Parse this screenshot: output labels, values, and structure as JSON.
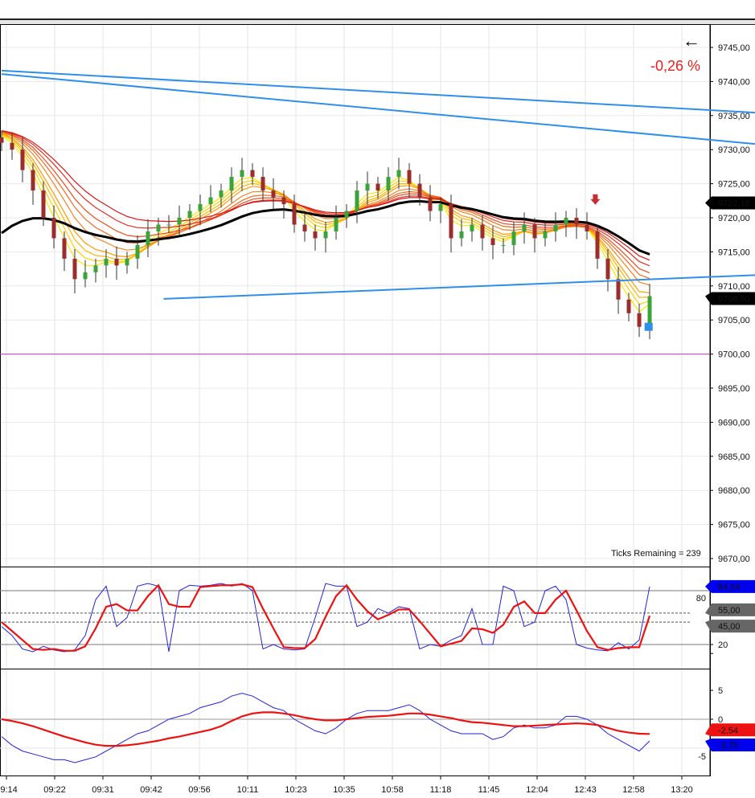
{
  "header": {
    "change_percent": "-0,26 %",
    "back_icon": "arrow-left-icon",
    "ticks_remaining": "Ticks Remaining = 239"
  },
  "colors": {
    "up": "#3aa43a",
    "down": "#9b2d2d",
    "trend": "#2f8fe8",
    "ma_long": "#000000",
    "support": "#cc33cc",
    "stoch_k": "#2222dd",
    "stoch_d": "#ee1111"
  },
  "chart_data": [
    {
      "type": "candlestick",
      "title": "Price",
      "ylim": [
        9667,
        9748
      ],
      "yticks": [
        "9745,00",
        "9740,00",
        "9735,00",
        "9730,00",
        "9725,00",
        "9720,00",
        "9715,00",
        "9710,00",
        "9705,00",
        "9700,00",
        "9695,00",
        "9690,00",
        "9685,00",
        "9680,00",
        "9675,00",
        "9670,00"
      ],
      "xticks": [
        "09:14",
        "09:22",
        "09:31",
        "09:42",
        "09:56",
        "10:11",
        "10:23",
        "10:35",
        "10:58",
        "11:18",
        "11:45",
        "12:04",
        "12:43",
        "12:58",
        "13:20"
      ],
      "close": [
        9731,
        9730,
        9727,
        9724,
        9720,
        9717,
        9714,
        9711,
        9712,
        9713,
        9714,
        9713,
        9714,
        9716,
        9718,
        9719,
        9719,
        9720,
        9721,
        9722,
        9723,
        9724,
        9726,
        9727,
        9726,
        9724,
        9723,
        9722,
        9719,
        9718,
        9717,
        9718,
        9720,
        9721,
        9724,
        9725,
        9724,
        9726,
        9727,
        9725,
        9723,
        9721,
        9722,
        9717,
        9718,
        9719,
        9717,
        9716,
        9716,
        9718,
        9719,
        9717,
        9718,
        9719,
        9720,
        9719,
        9718,
        9714,
        9711,
        9708,
        9706,
        9704,
        9708.5
      ],
      "trendlines": [
        {
          "from": [
            0,
            9741.6
          ],
          "to": [
            135.5,
            9730
          ]
        },
        {
          "from": [
            0,
            9741.1
          ],
          "to": [
            135.5,
            9721.8
          ]
        },
        {
          "from": [
            78.3,
            9729.8
          ],
          "to": [
            135.5,
            9715.5
          ]
        },
        {
          "from": [
            15.5,
            9708.1
          ],
          "to": [
            135.5,
            9715.5
          ]
        },
        {
          "from": [
            95.2,
            9713.3
          ],
          "to": [
            135.5,
            9719.7
          ]
        }
      ],
      "horizontal_line": 9700,
      "price_tags": [
        {
          "value": 9722.18,
          "label": "9722,18"
        },
        {
          "value": 9708.5,
          "label": "9708,50"
        }
      ],
      "markers": [
        {
          "type": "sell-arrow",
          "bar": 56.8,
          "price": 9722.5
        },
        {
          "type": "buy-square",
          "bar": 61.9,
          "price": 9704
        }
      ]
    },
    {
      "type": "line",
      "title": "Stochastic",
      "ylim": [
        8,
        94
      ],
      "yticks": [
        "80",
        "20"
      ],
      "levels": [
        80,
        55,
        45,
        20
      ],
      "tags": [
        {
          "value": 84.54,
          "label": "84,54",
          "color": "#0000ee"
        },
        {
          "value": 55,
          "label": "55,00",
          "color": "#666666"
        },
        {
          "value": 45,
          "label": "45,00",
          "color": "#666666"
        }
      ],
      "series": [
        {
          "name": "K",
          "values": [
            40,
            30,
            15,
            12,
            18,
            14,
            12,
            14,
            30,
            70,
            85,
            40,
            50,
            85,
            88,
            85,
            12,
            80,
            86,
            85,
            86,
            88,
            85,
            88,
            80,
            15,
            20,
            15,
            14,
            15,
            50,
            88,
            85,
            85,
            40,
            45,
            60,
            55,
            62,
            60,
            15,
            20,
            18,
            25,
            30,
            60,
            20,
            20,
            85,
            80,
            40,
            45,
            80,
            85,
            70,
            20,
            16,
            14,
            13,
            22,
            15,
            25,
            84.54
          ]
        },
        {
          "name": "D",
          "values": [
            45,
            35,
            25,
            15,
            14,
            15,
            13,
            13,
            18,
            38,
            62,
            65,
            58,
            58,
            74,
            86,
            65,
            62,
            62,
            84,
            85,
            86,
            86,
            87,
            84,
            60,
            38,
            17,
            16,
            16,
            26,
            51,
            74,
            86,
            70,
            57,
            48,
            53,
            59,
            59,
            46,
            32,
            18,
            21,
            24,
            38,
            37,
            33,
            42,
            62,
            68,
            55,
            55,
            70,
            80,
            58,
            35,
            17,
            14,
            16,
            17,
            17,
            52
          ]
        }
      ]
    },
    {
      "type": "line",
      "title": "Momentum",
      "ylim": [
        -9,
        9
      ],
      "yticks": [
        "5",
        "0",
        "-5"
      ],
      "tags": [
        {
          "value": -2.54,
          "label": "-2,54",
          "color": "#ee1111"
        },
        {
          "value": -3.75,
          "label": "-3,75",
          "color": "#0000ee"
        }
      ],
      "series": [
        {
          "name": "fast",
          "values": [
            -3,
            -4.5,
            -5.5,
            -6,
            -6.5,
            -7,
            -7,
            -7.5,
            -7,
            -6.5,
            -5.5,
            -4.5,
            -3.5,
            -2.5,
            -2,
            -1,
            0,
            0.5,
            1,
            2,
            2.5,
            3,
            4,
            4.5,
            4,
            3,
            2,
            1.5,
            0,
            -1,
            -2,
            -2.5,
            -1.5,
            0,
            1,
            1.5,
            1.5,
            1.5,
            2,
            2.5,
            1.5,
            0,
            -1,
            -2,
            -2.5,
            -2.5,
            -2.5,
            -3.5,
            -3,
            -1.5,
            -1,
            -1.5,
            -1.5,
            -1,
            0.5,
            0.5,
            0,
            -1,
            -2.5,
            -3.5,
            -4.5,
            -5.5,
            -3.75
          ]
        },
        {
          "name": "slow",
          "values": [
            0,
            -0.3,
            -0.7,
            -1.2,
            -1.8,
            -2.4,
            -3,
            -3.5,
            -4,
            -4.4,
            -4.6,
            -4.6,
            -4.5,
            -4.3,
            -4,
            -3.7,
            -3.3,
            -3,
            -2.6,
            -2.2,
            -1.8,
            -1.2,
            -0.3,
            0.5,
            1,
            1.2,
            1.2,
            1,
            0.7,
            0.3,
            0,
            -0.2,
            -0.2,
            0,
            0.2,
            0.4,
            0.5,
            0.6,
            0.8,
            1,
            1,
            0.8,
            0.5,
            0.2,
            -0.2,
            -0.5,
            -0.6,
            -0.8,
            -1,
            -1.2,
            -1.2,
            -1.1,
            -1,
            -0.9,
            -0.8,
            -0.7,
            -0.8,
            -1,
            -1.5,
            -2,
            -2.3,
            -2.5,
            -2.54
          ]
        }
      ]
    }
  ]
}
